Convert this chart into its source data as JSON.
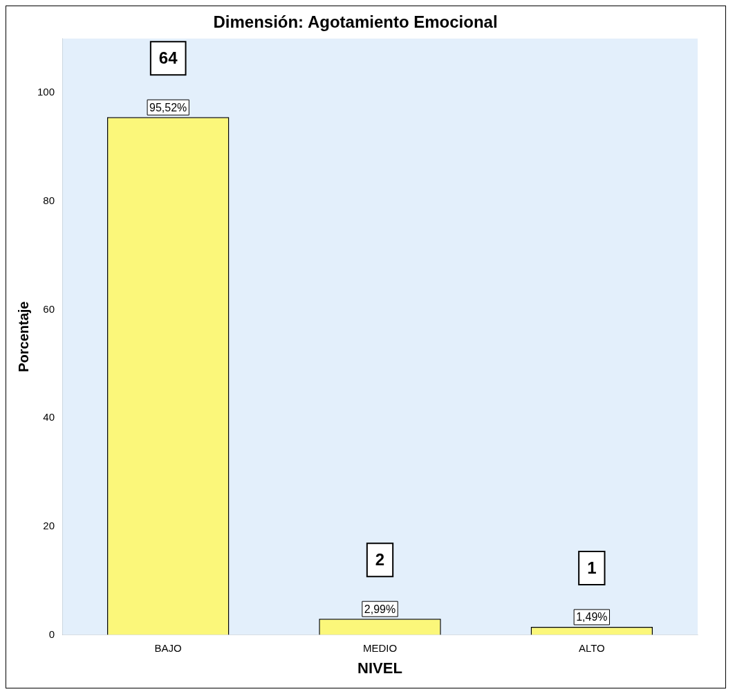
{
  "chart_data": {
    "type": "bar",
    "title": "Dimensión: Agotamiento Emocional",
    "xlabel": "NIVEL",
    "ylabel": "Porcentaje",
    "categories": [
      "BAJO",
      "MEDIO",
      "ALTO"
    ],
    "values": [
      95.52,
      2.99,
      1.49
    ],
    "value_labels": [
      "95,52%",
      "2,99%",
      "1,49%"
    ],
    "color": "#fbf77a",
    "ylim": [
      0,
      110
    ],
    "yticks": [
      0,
      20,
      40,
      60,
      80,
      100
    ],
    "grid": false,
    "legend": false,
    "annotations": [
      "64",
      "2",
      "1"
    ]
  }
}
